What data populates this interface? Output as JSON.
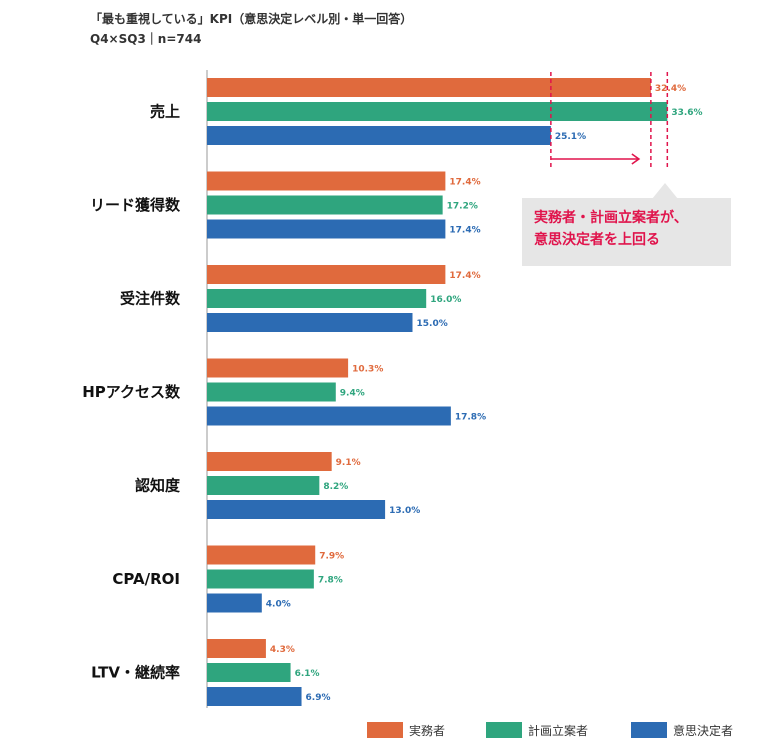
{
  "title_line1": "「最も重視している」KPI（意思決定レベル別・単一回答）",
  "title_line2": "Q4×SQ3｜n=744",
  "callout": {
    "line1": "実務者・計画立案者が、",
    "line2": "意思決定者を上回る"
  },
  "colors": {
    "series1": "#e06a3d",
    "series2": "#2fa57e",
    "series3": "#2c6bb3",
    "callout_text": "#e0144c"
  },
  "chart_data": {
    "type": "bar",
    "orientation": "horizontal",
    "categories": [
      "売上",
      "リード獲得数",
      "受注件数",
      "HPアクセス数",
      "認知度",
      "CPA/ROI",
      "LTV・継続率"
    ],
    "series": [
      {
        "name": "実務者",
        "color": "#e06a3d",
        "values": [
          32.4,
          17.4,
          17.4,
          10.3,
          9.1,
          7.9,
          4.3
        ]
      },
      {
        "name": "計画立案者",
        "color": "#2fa57e",
        "values": [
          33.6,
          17.2,
          16.0,
          9.4,
          8.2,
          7.8,
          6.1
        ]
      },
      {
        "name": "意思決定者",
        "color": "#2c6bb3",
        "values": [
          25.1,
          17.4,
          15.0,
          17.8,
          13.0,
          4.0,
          6.9
        ]
      }
    ],
    "value_suffix": "%",
    "xlim": [
      0,
      35
    ],
    "legend_position": "bottom-right",
    "grid": false
  }
}
